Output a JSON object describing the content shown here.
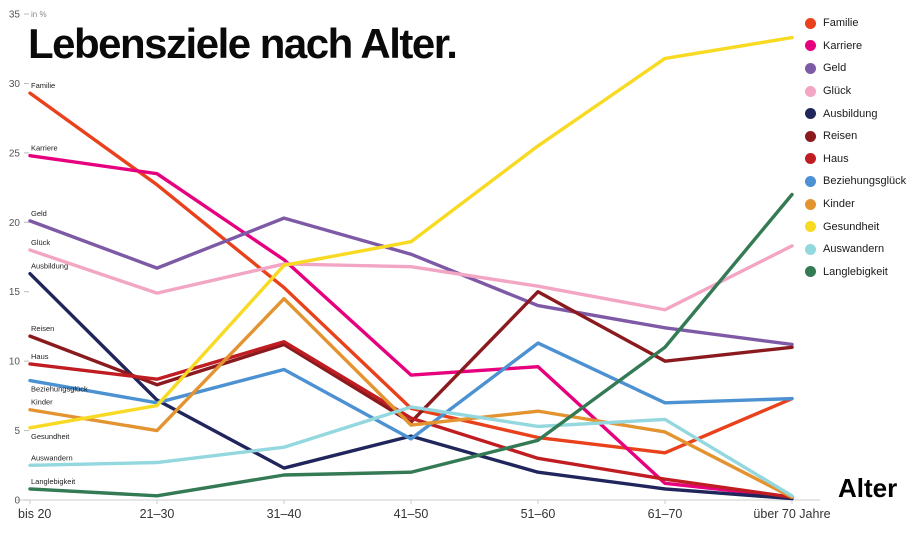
{
  "title": "Lebensziele nach Alter.",
  "y_axis_unit": "in %",
  "x_axis_title": "Alter",
  "chart_data": {
    "type": "line",
    "title": "Lebensziele nach Alter.",
    "xlabel": "Alter",
    "ylabel": "in %",
    "ylim": [
      0,
      35
    ],
    "yticks": [
      0,
      5,
      10,
      15,
      20,
      25,
      30,
      35
    ],
    "grid": false,
    "legend_position": "top-right",
    "categories": [
      "bis 20",
      "21–30",
      "31–40",
      "41–50",
      "51–60",
      "61–70",
      "über 70 Jahre"
    ],
    "series": [
      {
        "name": "Familie",
        "color": "#e8411c",
        "values": [
          29.3,
          22.7,
          15.3,
          6.6,
          4.5,
          3.4,
          7.3
        ]
      },
      {
        "name": "Karriere",
        "color": "#e6007e",
        "values": [
          24.8,
          23.5,
          17.3,
          9.0,
          9.6,
          1.2,
          0.2
        ]
      },
      {
        "name": "Geld",
        "color": "#7e5aa6",
        "values": [
          20.1,
          16.7,
          20.3,
          17.7,
          14.0,
          12.4,
          11.2
        ]
      },
      {
        "name": "Glück",
        "color": "#f2a6c4",
        "values": [
          18.0,
          14.9,
          17.0,
          16.8,
          15.4,
          13.7,
          18.3
        ]
      },
      {
        "name": "Ausbildung",
        "color": "#20265c",
        "values": [
          16.3,
          7.2,
          2.3,
          4.6,
          2.0,
          0.8,
          0.1
        ]
      },
      {
        "name": "Reisen",
        "color": "#8b1a1f",
        "values": [
          11.8,
          8.3,
          11.2,
          5.6,
          15.0,
          10.0,
          11.0
        ]
      },
      {
        "name": "Haus",
        "color": "#c01d23",
        "values": [
          9.8,
          8.7,
          11.4,
          5.9,
          3.0,
          1.5,
          0.2
        ]
      },
      {
        "name": "Beziehungsglück",
        "color": "#4c91d2",
        "values": [
          8.6,
          7.0,
          9.4,
          4.4,
          11.3,
          7.0,
          7.3
        ]
      },
      {
        "name": "Kinder",
        "color": "#e3932f",
        "values": [
          6.5,
          5.0,
          14.5,
          5.4,
          6.4,
          4.9,
          0.2
        ]
      },
      {
        "name": "Gesundheit",
        "color": "#f8da22",
        "values": [
          5.2,
          6.8,
          16.9,
          18.6,
          25.5,
          31.8,
          33.3
        ]
      },
      {
        "name": "Auswandern",
        "color": "#92d8de",
        "values": [
          2.5,
          2.7,
          3.8,
          6.7,
          5.3,
          5.8,
          0.3
        ]
      },
      {
        "name": "Langlebigkeit",
        "color": "#337a55",
        "values": [
          0.8,
          0.3,
          1.8,
          2.0,
          4.3,
          11.0,
          22.0
        ]
      }
    ]
  }
}
